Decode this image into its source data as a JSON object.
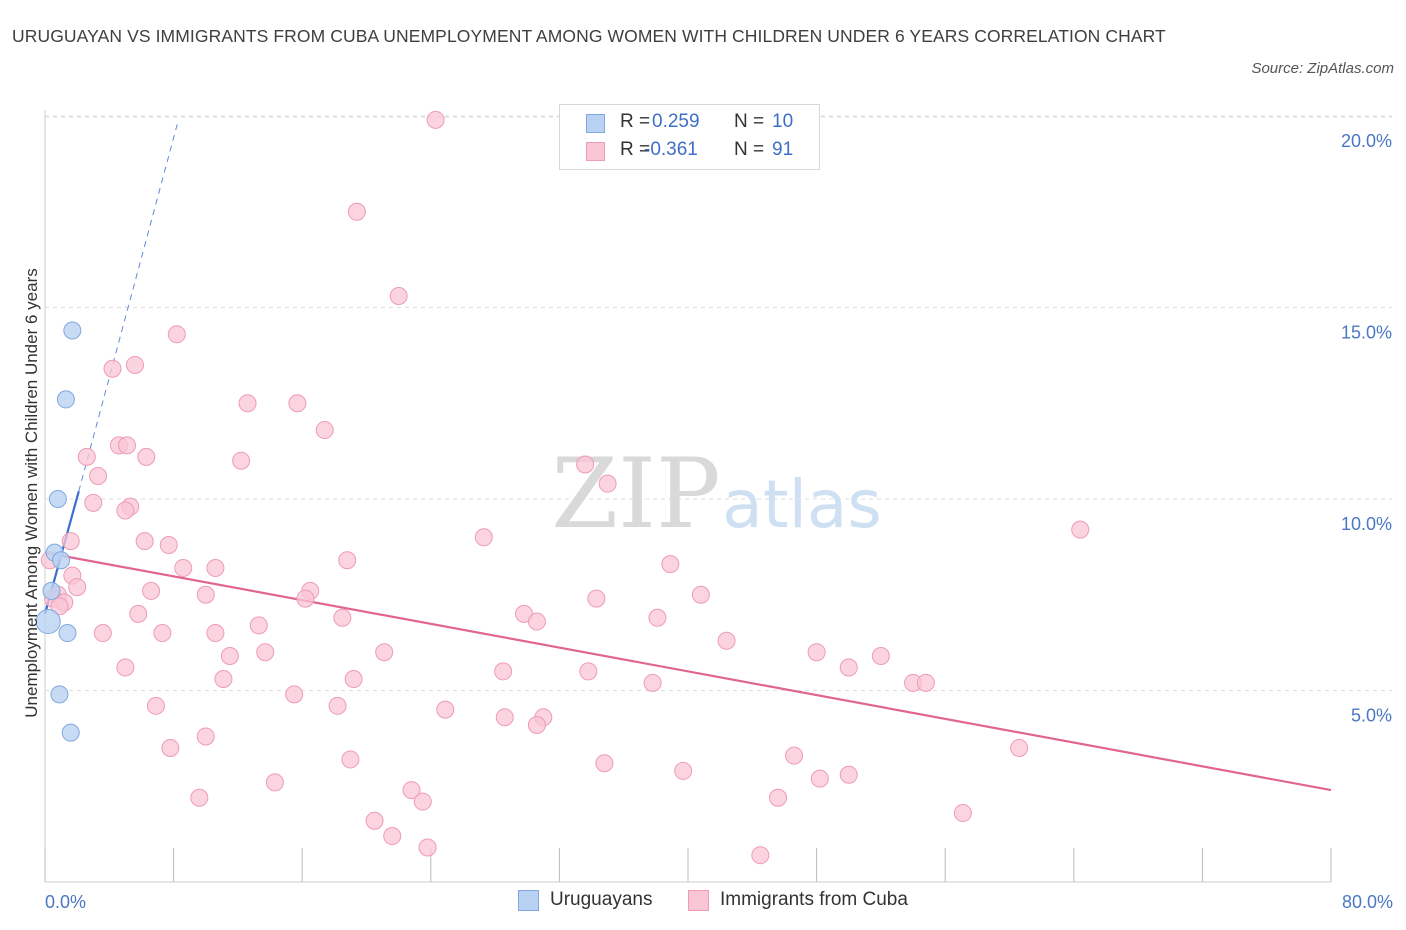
{
  "title": "URUGUAYAN VS IMMIGRANTS FROM CUBA UNEMPLOYMENT AMONG WOMEN WITH CHILDREN UNDER 6 YEARS CORRELATION CHART",
  "source": "Source: ZipAtlas.com",
  "watermark": {
    "zip": "ZIP",
    "atlas": "atlas"
  },
  "legend": {
    "rows": [
      {
        "r_label": "R =",
        "r_value": "0.259",
        "n_label": "N =",
        "n_value": "10"
      },
      {
        "r_label": "R =",
        "r_value": "-0.361",
        "n_label": "N =",
        "n_value": "91"
      }
    ]
  },
  "bottom_legend": [
    "Uruguayans",
    "Immigrants from Cuba"
  ],
  "colors": {
    "uruguayans_fill": "#b9d2f3",
    "uruguayans_stroke": "#7fa8e0",
    "uruguayans_line": "#3a6fd0",
    "cuba_fill": "#f9c6d6",
    "cuba_stroke": "#ee9bb6",
    "cuba_line": "#e06592",
    "tick_text": "#4a78c2",
    "grid": "#dddddd"
  },
  "chart_data": {
    "type": "scatter",
    "ylabel": "Unemployment Among Women with Children Under 6 years",
    "xlabel": "",
    "xlim": [
      0,
      80
    ],
    "ylim": [
      0,
      20.5
    ],
    "x_tick_labels": {
      "0": "0.0%",
      "80": "80.0%"
    },
    "y_ticks": [
      5,
      10,
      15,
      20
    ],
    "y_tick_labels": [
      "5.0%",
      "10.0%",
      "15.0%",
      "20.0%"
    ],
    "grid": "horizontal dashed",
    "series": [
      {
        "name": "Uruguayans",
        "r": 0.259,
        "n": 10,
        "points": [
          [
            1.7,
            14.4
          ],
          [
            1.3,
            12.6
          ],
          [
            0.8,
            10.0
          ],
          [
            0.6,
            8.6
          ],
          [
            1.0,
            8.4
          ],
          [
            0.4,
            7.6
          ],
          [
            0.2,
            6.8
          ],
          [
            1.4,
            6.5
          ],
          [
            0.9,
            4.9
          ],
          [
            1.6,
            3.9
          ]
        ],
        "trend": {
          "x": [
            0,
            2.1
          ],
          "y": [
            7.0,
            10.2
          ],
          "extended_x": [
            2.1,
            8.3
          ],
          "extended_y": [
            10.2,
            19.9
          ]
        }
      },
      {
        "name": "Immigrants from Cuba",
        "r": -0.361,
        "n": 91,
        "points": [
          [
            24.3,
            19.9
          ],
          [
            19.4,
            17.5
          ],
          [
            22.0,
            15.3
          ],
          [
            8.2,
            14.3
          ],
          [
            4.2,
            13.4
          ],
          [
            5.6,
            13.5
          ],
          [
            12.6,
            12.5
          ],
          [
            15.7,
            12.5
          ],
          [
            17.4,
            11.8
          ],
          [
            4.6,
            11.4
          ],
          [
            5.1,
            11.4
          ],
          [
            2.6,
            11.1
          ],
          [
            6.3,
            11.1
          ],
          [
            12.2,
            11.0
          ],
          [
            33.6,
            10.9
          ],
          [
            3.3,
            10.6
          ],
          [
            35.0,
            10.4
          ],
          [
            3.0,
            9.9
          ],
          [
            5.3,
            9.8
          ],
          [
            5.0,
            9.7
          ],
          [
            64.4,
            9.2
          ],
          [
            27.3,
            9.0
          ],
          [
            6.2,
            8.9
          ],
          [
            1.6,
            8.9
          ],
          [
            7.7,
            8.8
          ],
          [
            0.3,
            8.4
          ],
          [
            18.8,
            8.4
          ],
          [
            38.9,
            8.3
          ],
          [
            8.6,
            8.2
          ],
          [
            10.6,
            8.2
          ],
          [
            1.7,
            8.0
          ],
          [
            2.0,
            7.7
          ],
          [
            6.6,
            7.6
          ],
          [
            16.5,
            7.6
          ],
          [
            0.8,
            7.5
          ],
          [
            0.5,
            7.4
          ],
          [
            1.2,
            7.3
          ],
          [
            10.0,
            7.5
          ],
          [
            16.2,
            7.4
          ],
          [
            40.8,
            7.5
          ],
          [
            34.3,
            7.4
          ],
          [
            0.9,
            7.2
          ],
          [
            29.8,
            7.0
          ],
          [
            5.8,
            7.0
          ],
          [
            18.5,
            6.9
          ],
          [
            38.1,
            6.9
          ],
          [
            30.6,
            6.8
          ],
          [
            13.3,
            6.7
          ],
          [
            3.6,
            6.5
          ],
          [
            7.3,
            6.5
          ],
          [
            10.6,
            6.5
          ],
          [
            42.4,
            6.3
          ],
          [
            13.7,
            6.0
          ],
          [
            21.1,
            6.0
          ],
          [
            11.5,
            5.9
          ],
          [
            48.0,
            6.0
          ],
          [
            52.0,
            5.9
          ],
          [
            5.0,
            5.6
          ],
          [
            50.0,
            5.6
          ],
          [
            28.5,
            5.5
          ],
          [
            33.8,
            5.5
          ],
          [
            11.1,
            5.3
          ],
          [
            19.2,
            5.3
          ],
          [
            37.8,
            5.2
          ],
          [
            54.0,
            5.2
          ],
          [
            54.8,
            5.2
          ],
          [
            15.5,
            4.9
          ],
          [
            6.9,
            4.6
          ],
          [
            18.2,
            4.6
          ],
          [
            24.9,
            4.5
          ],
          [
            28.6,
            4.3
          ],
          [
            31.0,
            4.3
          ],
          [
            30.6,
            4.1
          ],
          [
            10.0,
            3.8
          ],
          [
            7.8,
            3.5
          ],
          [
            60.6,
            3.5
          ],
          [
            46.6,
            3.3
          ],
          [
            19.0,
            3.2
          ],
          [
            34.8,
            3.1
          ],
          [
            39.7,
            2.9
          ],
          [
            50.0,
            2.8
          ],
          [
            48.2,
            2.7
          ],
          [
            14.3,
            2.6
          ],
          [
            22.8,
            2.4
          ],
          [
            9.6,
            2.2
          ],
          [
            45.6,
            2.2
          ],
          [
            23.5,
            2.1
          ],
          [
            57.1,
            1.8
          ],
          [
            20.5,
            1.6
          ],
          [
            21.6,
            1.2
          ],
          [
            23.8,
            0.9
          ],
          [
            44.5,
            0.7
          ]
        ],
        "trend": {
          "x": [
            0,
            80
          ],
          "y": [
            8.6,
            2.4
          ]
        }
      }
    ]
  }
}
